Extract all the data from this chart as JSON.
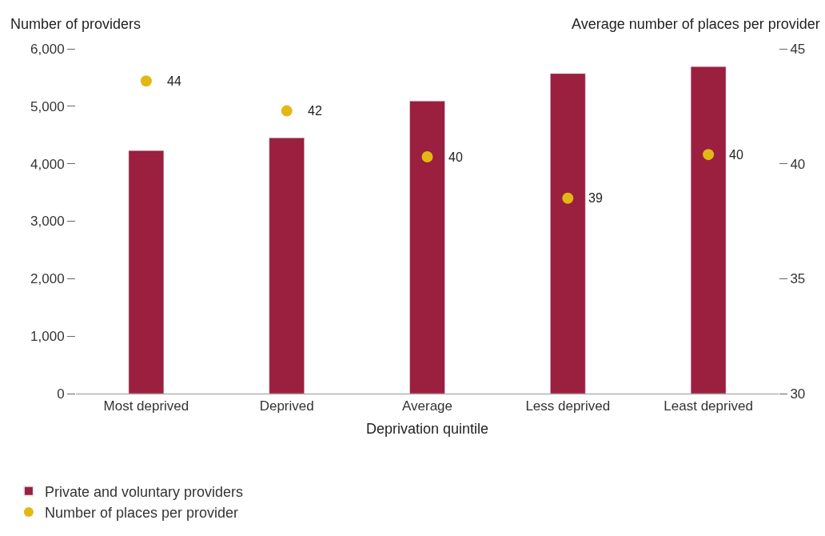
{
  "chart_data": {
    "type": "bar",
    "xlabel": "Deprivation quintile",
    "ylabel": "Number of providers",
    "y2label": "Average number of places per provider",
    "categories": [
      "Most deprived",
      "Deprived",
      "Average",
      "Less deprived",
      "Least deprived"
    ],
    "series": [
      {
        "name": "Private and voluntary providers",
        "color": "#9b1f3e",
        "values": [
          4230,
          4450,
          5090,
          5570,
          5690
        ]
      },
      {
        "name": "Number of places per provider",
        "type": "scatter",
        "axis": "y2",
        "color": "#e2b814",
        "marker": "circle",
        "values": [
          43.6,
          42.3,
          40.3,
          38.5,
          40.4
        ],
        "value_labels": [
          "44",
          "42",
          "40",
          "39",
          "40"
        ]
      }
    ],
    "ylim": [
      0,
      6000
    ],
    "yticks": [
      {
        "value": 0,
        "label": "0"
      },
      {
        "value": 1000,
        "label": "1,000"
      },
      {
        "value": 2000,
        "label": "2,000"
      },
      {
        "value": 3000,
        "label": "3,000"
      },
      {
        "value": 4000,
        "label": "4,000"
      },
      {
        "value": 5000,
        "label": "5,000"
      },
      {
        "value": 6000,
        "label": "6,000"
      }
    ],
    "y2lim": [
      30,
      45
    ],
    "y2ticks": [
      30,
      35,
      40,
      45
    ],
    "grid": false,
    "legend": "bottom left"
  }
}
